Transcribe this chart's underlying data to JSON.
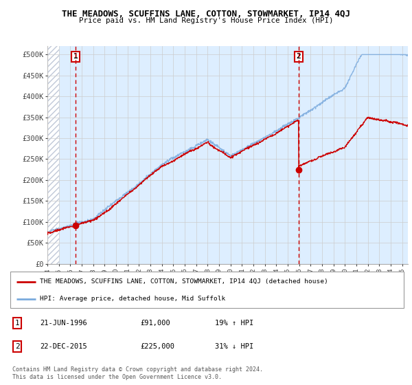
{
  "title": "THE MEADOWS, SCUFFINS LANE, COTTON, STOWMARKET, IP14 4QJ",
  "subtitle": "Price paid vs. HM Land Registry's House Price Index (HPI)",
  "legend_label_red": "THE MEADOWS, SCUFFINS LANE, COTTON, STOWMARKET, IP14 4QJ (detached house)",
  "legend_label_blue": "HPI: Average price, detached house, Mid Suffolk",
  "point1_label": "1",
  "point1_date": "21-JUN-1996",
  "point1_price": "£91,000",
  "point1_hpi": "19% ↑ HPI",
  "point1_year": 1996.47,
  "point1_value": 91000,
  "point2_label": "2",
  "point2_date": "22-DEC-2015",
  "point2_price": "£225,000",
  "point2_hpi": "31% ↓ HPI",
  "point2_year": 2015.97,
  "point2_value": 225000,
  "footer": "Contains HM Land Registry data © Crown copyright and database right 2024.\nThis data is licensed under the Open Government Licence v3.0.",
  "xmin": 1994.0,
  "xmax": 2025.5,
  "ymin": 0,
  "ymax": 520000,
  "yticks": [
    0,
    50000,
    100000,
    150000,
    200000,
    250000,
    300000,
    350000,
    400000,
    450000,
    500000
  ],
  "ytick_labels": [
    "£0",
    "£50K",
    "£100K",
    "£150K",
    "£200K",
    "£250K",
    "£300K",
    "£350K",
    "£400K",
    "£450K",
    "£500K"
  ],
  "hatch_xmax": 1995.0,
  "grid_color": "#cccccc",
  "bg_color": "#ddeeff",
  "hatch_color": "#c0c8d8",
  "red_color": "#cc0000",
  "blue_color": "#7aaadd"
}
